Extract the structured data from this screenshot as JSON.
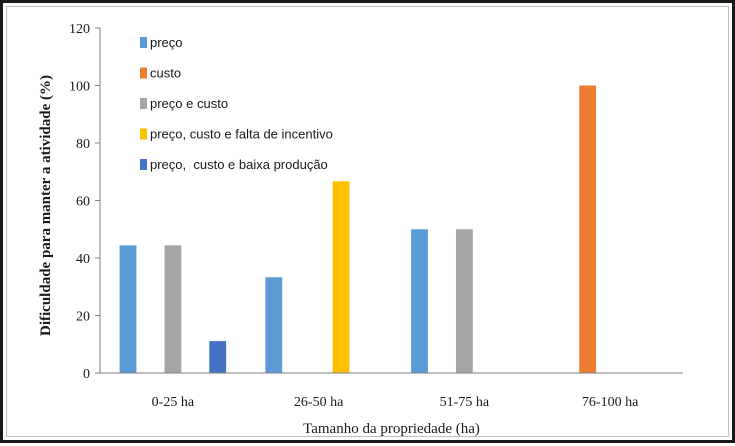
{
  "chart_data": {
    "type": "bar",
    "categories": [
      "0-25 ha",
      "26-50 ha",
      "51-75 ha",
      "76-100 ha"
    ],
    "series": [
      {
        "name": "preço",
        "color": "#5b9bd5",
        "values": [
          44.4,
          33.3,
          50,
          0
        ]
      },
      {
        "name": "custo",
        "color": "#ed7d31",
        "values": [
          0,
          0,
          0,
          100
        ]
      },
      {
        "name": "preço e custo",
        "color": "#a5a5a5",
        "values": [
          44.4,
          0,
          50,
          0
        ]
      },
      {
        "name": "preço, custo e falta de incentivo",
        "color": "#ffc000",
        "values": [
          0,
          66.7,
          0,
          0
        ]
      },
      {
        "name": "preço,  custo e baixa produção",
        "color": "#4472c4",
        "values": [
          11.1,
          0,
          0,
          0
        ]
      }
    ],
    "xlabel": "Tamanho da propriedade (ha)",
    "ylabel": "Dificuldade para manter a atividade (%)",
    "ylim": [
      0,
      120
    ],
    "yticks": [
      "0",
      "20",
      "40",
      "60",
      "80",
      "100",
      "120"
    ],
    "grid": false,
    "legend": "top-left"
  }
}
